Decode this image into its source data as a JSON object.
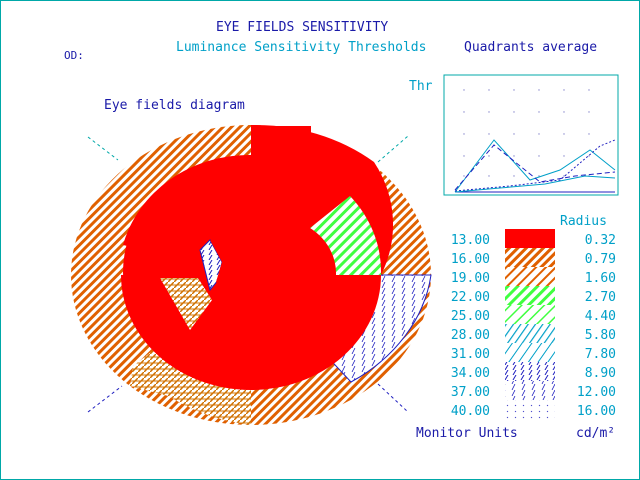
{
  "header": {
    "title": "EYE FIELDS SENSITIVITY",
    "subtitle": "Luminance Sensitivity Thresholds",
    "quadrants_title": "Quadrants average",
    "eye_label": "OD:",
    "diagram_label": "Eye fields diagram",
    "thr_label": "Thr"
  },
  "legend": {
    "radius_header": "Radius",
    "units_label": "Monitor Units",
    "radius_units": "cd/m²",
    "entries": [
      {
        "value": "13.00",
        "radius": "0.32",
        "pattern": "solid-red"
      },
      {
        "value": "16.00",
        "radius": "0.79",
        "pattern": "orange-hatch-dense"
      },
      {
        "value": "19.00",
        "radius": "1.60",
        "pattern": "orange-hatch"
      },
      {
        "value": "22.00",
        "radius": "2.70",
        "pattern": "green-hatch"
      },
      {
        "value": "25.00",
        "radius": "4.40",
        "pattern": "green-hatch-sparse"
      },
      {
        "value": "28.00",
        "radius": "5.80",
        "pattern": "cyan-hatch"
      },
      {
        "value": "31.00",
        "radius": "7.80",
        "pattern": "cyan-hatch-sparse"
      },
      {
        "value": "34.00",
        "radius": "8.90",
        "pattern": "blue-hatch"
      },
      {
        "value": "37.00",
        "radius": "12.00",
        "pattern": "blue-hatch-sparse"
      },
      {
        "value": "40.00",
        "radius": "16.00",
        "pattern": "blue-dots"
      }
    ]
  },
  "colors": {
    "frame": "#00a8a8",
    "red": "#ff0000",
    "orange": "#e06000",
    "green": "#40ff40",
    "blue": "#2020c0",
    "cyan": "#00a0c8",
    "navy": "#1a1aa8"
  }
}
